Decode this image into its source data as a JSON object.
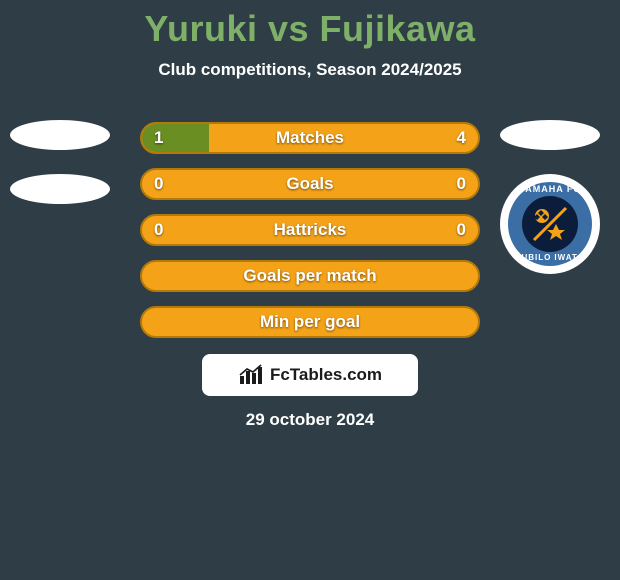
{
  "colors": {
    "page_bg": "#2f3e46",
    "title": "#7fb069",
    "subtitle": "#ffffff",
    "bar_bg": "#f4a318",
    "bar_border": "#b57908",
    "bar_left_fill": "#6b8e23",
    "bar_text": "#ffffff",
    "logo_bg": "#ffffff",
    "logo_text": "#1b1b1b",
    "date_text": "#ffffff",
    "oval_left": "#ffffff",
    "crest_outer": "#ffffff",
    "crest_mid": "#3a6ea5",
    "crest_inner": "#0b1d3a",
    "crest_text": "#ffffff",
    "crest_icon": "#f4a318"
  },
  "title": "Yuruki vs Fujikawa",
  "subtitle": "Club competitions, Season 2024/2025",
  "bars": [
    {
      "label": "Matches",
      "left": "1",
      "right": "4",
      "left_pct": 20,
      "right_pct": 80
    },
    {
      "label": "Goals",
      "left": "0",
      "right": "0",
      "left_pct": 0,
      "right_pct": 0
    },
    {
      "label": "Hattricks",
      "left": "0",
      "right": "0",
      "left_pct": 0,
      "right_pct": 0
    },
    {
      "label": "Goals per match",
      "left": "",
      "right": "",
      "left_pct": 0,
      "right_pct": 0
    },
    {
      "label": "Min per goal",
      "left": "",
      "right": "",
      "left_pct": 0,
      "right_pct": 0
    }
  ],
  "left_ovals_count": 2,
  "crest": {
    "top": "YAMAHA FC",
    "bottom_left": "JUBILO",
    "bottom_right": "IWATA"
  },
  "logo_text": "FcTables.com",
  "date": "29 october 2024"
}
